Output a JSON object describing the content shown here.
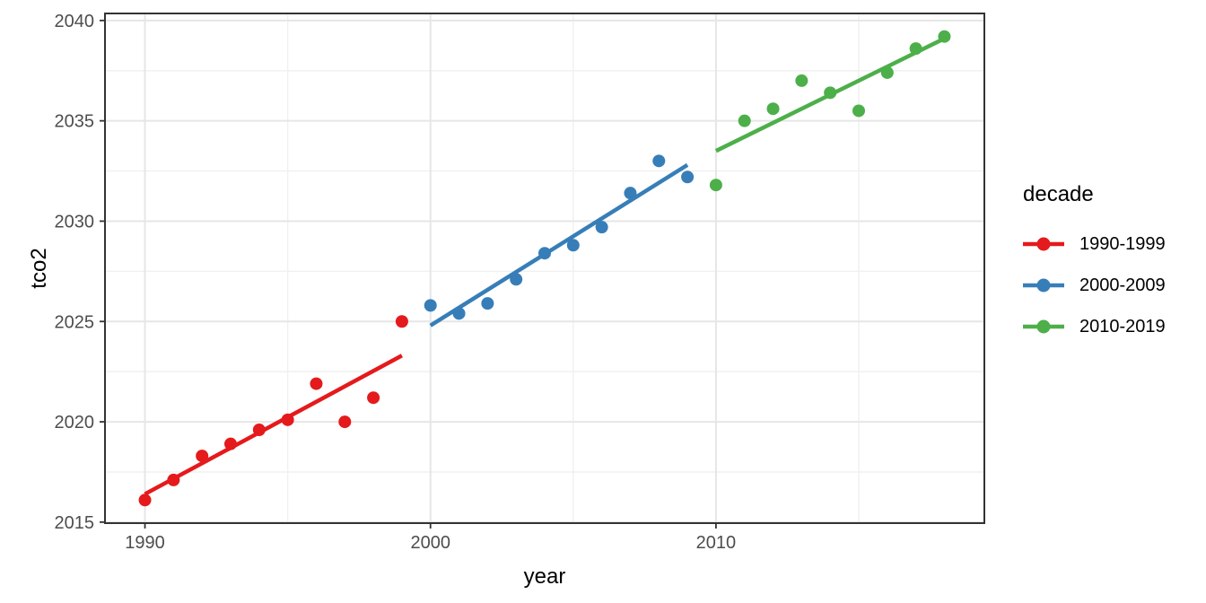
{
  "chart_data": {
    "type": "scatter",
    "title": "",
    "xlabel": "year",
    "ylabel": "tco2",
    "legend_title": "decade",
    "legend_position": "right",
    "grid": true,
    "xlim": [
      1988.6,
      2019.4
    ],
    "ylim": [
      2014.95,
      2040.35
    ],
    "x_major_ticks": [
      1990,
      2000,
      2010
    ],
    "x_minor_gridlines": [
      1995,
      2005,
      2015
    ],
    "y_major_ticks": [
      2015,
      2020,
      2025,
      2030,
      2035,
      2040
    ],
    "y_minor_gridlines": [
      2017.5,
      2022.5,
      2027.5,
      2032.5,
      2037.5
    ],
    "series": [
      {
        "name": "1990-1999",
        "color": "#E41A1C",
        "x": [
          1990,
          1991,
          1992,
          1993,
          1994,
          1995,
          1996,
          1997,
          1998,
          1999
        ],
        "y": [
          2016.1,
          2017.1,
          2018.3,
          2018.9,
          2019.6,
          2020.1,
          2021.9,
          2020.0,
          2021.2,
          2025.0
        ],
        "trend": {
          "x": [
            1990,
            1999
          ],
          "y": [
            2016.4,
            2023.3
          ]
        }
      },
      {
        "name": "2000-2009",
        "color": "#377EB8",
        "x": [
          2000,
          2001,
          2002,
          2003,
          2004,
          2005,
          2006,
          2007,
          2008,
          2009
        ],
        "y": [
          2025.8,
          2025.4,
          2025.9,
          2027.1,
          2028.4,
          2028.8,
          2029.7,
          2031.4,
          2033.0,
          2032.2
        ],
        "trend": {
          "x": [
            2000,
            2009
          ],
          "y": [
            2024.8,
            2032.8
          ]
        }
      },
      {
        "name": "2010-2019",
        "color": "#4DAF4A",
        "x": [
          2010,
          2011,
          2012,
          2013,
          2014,
          2015,
          2016,
          2017,
          2018
        ],
        "y": [
          2031.8,
          2035.0,
          2035.6,
          2037.0,
          2036.4,
          2035.5,
          2037.4,
          2038.6,
          2039.2
        ],
        "trend": {
          "x": [
            2010,
            2018
          ],
          "y": [
            2033.5,
            2039.1
          ]
        }
      }
    ]
  },
  "style_colors": {
    "tick_label": "#4D4D4D",
    "axis_title": "#000000",
    "panel_border": "#333333",
    "tick_mark": "#333333",
    "grid_major": "#E6E6E6",
    "grid_minor": "#F1F1F1",
    "panel_background": "#FFFFFF"
  }
}
